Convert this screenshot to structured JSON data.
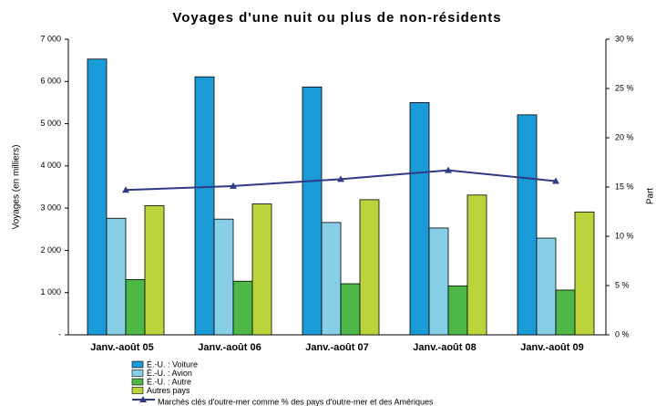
{
  "chart_data": {
    "type": "bar",
    "title": "Voyages d'une nuit ou plus de non-résidents",
    "y_label": "Voyages (en milliers)",
    "y2_label": "Part",
    "categories": [
      "Janv.-août 05",
      "Janv.-août 06",
      "Janv.-août 07",
      "Janv.-août 08",
      "Janv.-août 09"
    ],
    "series": [
      {
        "name": "É.-U. : Voiture",
        "color": "#1a9ad6",
        "values": [
          6530,
          6110,
          5870,
          5500,
          5210
        ]
      },
      {
        "name": "É.-U. : Avion",
        "color": "#87cfe6",
        "values": [
          2760,
          2740,
          2660,
          2530,
          2290
        ]
      },
      {
        "name": "É.-U. : Autre",
        "color": "#4db848",
        "values": [
          1310,
          1270,
          1210,
          1160,
          1060
        ]
      },
      {
        "name": "Autres pays",
        "color": "#bcd43c",
        "values": [
          3060,
          3100,
          3200,
          3310,
          2910
        ]
      },
      {
        "name": "Marchés clés d'outre-mer comme % des pays d'outre-mer et des Amériques",
        "color": "#2e3a87",
        "type": "line",
        "axis": "y2",
        "values": [
          14.7,
          15.1,
          15.8,
          16.7,
          15.6
        ]
      }
    ],
    "ylim": [
      0,
      7000
    ],
    "yticks": [
      {
        "value": 0,
        "label": "-"
      },
      {
        "value": 1000,
        "label": "1 000"
      },
      {
        "value": 2000,
        "label": "2 000"
      },
      {
        "value": 3000,
        "label": "3 000"
      },
      {
        "value": 4000,
        "label": "4 000"
      },
      {
        "value": 5000,
        "label": "5 000"
      },
      {
        "value": 6000,
        "label": "6 000"
      },
      {
        "value": 7000,
        "label": "7 000"
      }
    ],
    "y2lim": [
      0,
      30
    ],
    "y2ticks": [
      {
        "value": 0,
        "label": "0 %"
      },
      {
        "value": 5,
        "label": "5 %"
      },
      {
        "value": 10,
        "label": "10 %"
      },
      {
        "value": 15,
        "label": "15 %"
      },
      {
        "value": 20,
        "label": "20 %"
      },
      {
        "value": 25,
        "label": "25 %"
      },
      {
        "value": 30,
        "label": "30 %"
      }
    ]
  }
}
